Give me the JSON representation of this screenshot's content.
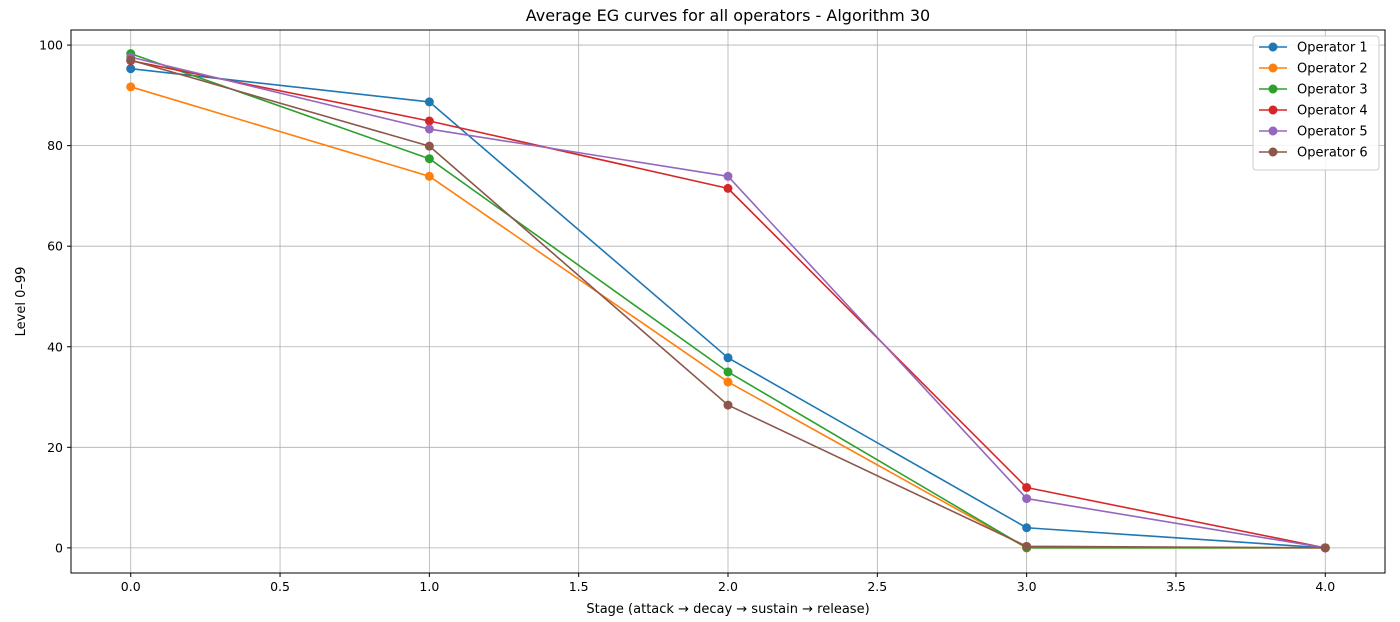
{
  "chart_data": {
    "type": "line",
    "title": "Average EG curves for all operators - Algorithm 30",
    "xlabel": "Stage (attack → decay → sustain → release)",
    "ylabel": "Level 0–99",
    "xlim": [
      -0.2,
      4.2
    ],
    "ylim": [
      -5,
      103
    ],
    "xticks": [
      0.0,
      0.5,
      1.0,
      1.5,
      2.0,
      2.5,
      3.0,
      3.5,
      4.0
    ],
    "xtick_labels": [
      "0.0",
      "0.5",
      "1.0",
      "1.5",
      "2.0",
      "2.5",
      "3.0",
      "3.5",
      "4.0"
    ],
    "yticks": [
      0,
      20,
      40,
      60,
      80,
      100
    ],
    "ytick_labels": [
      "0",
      "20",
      "40",
      "60",
      "80",
      "100"
    ],
    "grid": true,
    "legend_position": "top-right",
    "x": [
      0,
      1,
      2,
      3,
      4
    ],
    "series": [
      {
        "name": "Operator 1",
        "color": "#1f77b4",
        "values": [
          95.3,
          88.7,
          37.8,
          4.0,
          0.0
        ]
      },
      {
        "name": "Operator 2",
        "color": "#ff7f0e",
        "values": [
          91.7,
          73.9,
          33.0,
          0.0,
          0.0
        ]
      },
      {
        "name": "Operator 3",
        "color": "#2ca02c",
        "values": [
          98.3,
          77.4,
          35.0,
          0.0,
          0.0
        ]
      },
      {
        "name": "Operator 4",
        "color": "#d62728",
        "values": [
          96.9,
          84.9,
          71.5,
          12.0,
          0.0
        ]
      },
      {
        "name": "Operator 5",
        "color": "#9467bd",
        "values": [
          97.6,
          83.3,
          73.9,
          9.8,
          0.0
        ]
      },
      {
        "name": "Operator 6",
        "color": "#8c564b",
        "values": [
          97.0,
          79.9,
          28.4,
          0.3,
          0.0
        ]
      }
    ]
  }
}
